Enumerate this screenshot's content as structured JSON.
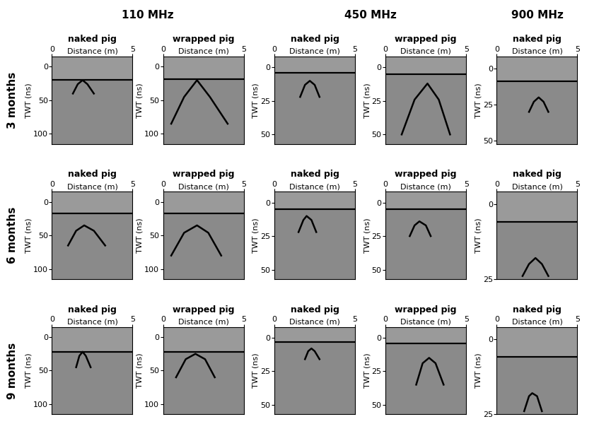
{
  "chart_data": [
    {
      "type": "radargram",
      "group": "110 MHz",
      "row": "3 months",
      "title": "naked pig",
      "x_label": "Distance (m)",
      "y_label": "TWT (ns)",
      "xlim": [
        0,
        5
      ],
      "ylim": [
        -15,
        115
      ],
      "xticks": [
        0,
        5
      ],
      "yticks": [
        0,
        50,
        100
      ],
      "surface": 20,
      "reflections": [
        {
          "x": [
            1.3,
            1.6,
            1.9,
            2.2,
            2.6
          ],
          "y": [
            40,
            26,
            20,
            26,
            40
          ]
        }
      ]
    },
    {
      "type": "radargram",
      "group": "110 MHz",
      "row": "3 months",
      "title": "wrapped pig",
      "x_label": "Distance (m)",
      "y_label": "TWT (ns)",
      "xlim": [
        0,
        5
      ],
      "ylim": [
        -15,
        115
      ],
      "xticks": [
        0,
        5
      ],
      "yticks": [
        0,
        50,
        100
      ],
      "surface": 18,
      "reflections": [
        {
          "x": [
            0.5,
            1.3,
            2.1,
            2.9,
            4.0
          ],
          "y": [
            85,
            45,
            20,
            45,
            85
          ]
        }
      ]
    },
    {
      "type": "radargram",
      "group": "450 MHz",
      "row": "3 months",
      "title": "naked pig",
      "x_label": "Distance (m)",
      "y_label": "TWT (ns)",
      "xlim": [
        0,
        5
      ],
      "ylim": [
        -8,
        57
      ],
      "xticks": [
        0,
        5
      ],
      "yticks": [
        0,
        25,
        50
      ],
      "surface": 4,
      "reflections": [
        {
          "x": [
            1.6,
            1.9,
            2.2,
            2.5,
            2.8
          ],
          "y": [
            22,
            13,
            10,
            13,
            22
          ]
        }
      ]
    },
    {
      "type": "radargram",
      "group": "450 MHz",
      "row": "3 months",
      "title": "wrapped pig",
      "x_label": "Distance (m)",
      "y_label": "TWT (ns)",
      "xlim": [
        0,
        5
      ],
      "ylim": [
        -8,
        57
      ],
      "xticks": [
        0,
        5
      ],
      "yticks": [
        0,
        25,
        50
      ],
      "surface": 5,
      "reflections": [
        {
          "x": [
            1.0,
            1.8,
            2.6,
            3.3,
            4.0
          ],
          "y": [
            50,
            24,
            12,
            24,
            50
          ]
        }
      ]
    },
    {
      "type": "radargram",
      "group": "900 MHz",
      "row": "3 months",
      "title": "naked pig",
      "x_label": "Distance (m)",
      "y_label": "TWT (ns)",
      "xlim": [
        0,
        5
      ],
      "ylim": [
        -8,
        52
      ],
      "xticks": [
        0,
        5
      ],
      "yticks": [
        0,
        25,
        50
      ],
      "surface": 9,
      "reflections": [
        {
          "x": [
            2.0,
            2.3,
            2.6,
            2.9,
            3.2
          ],
          "y": [
            30,
            23,
            20,
            23,
            30
          ]
        }
      ]
    },
    {
      "type": "radargram",
      "group": "110 MHz",
      "row": "6 months",
      "title": "naked pig",
      "x_label": "Distance (m)",
      "y_label": "TWT (ns)",
      "xlim": [
        0,
        5
      ],
      "ylim": [
        -15,
        115
      ],
      "xticks": [
        0,
        5
      ],
      "yticks": [
        0,
        50,
        100
      ],
      "surface": 17,
      "reflections": [
        {
          "x": [
            1.0,
            1.5,
            2.0,
            2.6,
            3.3
          ],
          "y": [
            65,
            43,
            35,
            43,
            65
          ]
        }
      ]
    },
    {
      "type": "radargram",
      "group": "110 MHz",
      "row": "6 months",
      "title": "wrapped pig",
      "x_label": "Distance (m)",
      "y_label": "TWT (ns)",
      "xlim": [
        0,
        5
      ],
      "ylim": [
        -15,
        115
      ],
      "xticks": [
        0,
        5
      ],
      "yticks": [
        0,
        50,
        100
      ],
      "surface": 17,
      "reflections": [
        {
          "x": [
            0.5,
            1.3,
            2.1,
            2.8,
            3.6
          ],
          "y": [
            80,
            46,
            35,
            46,
            80
          ]
        }
      ]
    },
    {
      "type": "radargram",
      "group": "450 MHz",
      "row": "6 months",
      "title": "naked pig",
      "x_label": "Distance (m)",
      "y_label": "TWT (ns)",
      "xlim": [
        0,
        5
      ],
      "ylim": [
        -8,
        57
      ],
      "xticks": [
        0,
        5
      ],
      "yticks": [
        0,
        25,
        50
      ],
      "surface": 5,
      "reflections": [
        {
          "x": [
            1.5,
            1.8,
            2.0,
            2.3,
            2.6
          ],
          "y": [
            22,
            13,
            10,
            13,
            22
          ]
        }
      ]
    },
    {
      "type": "radargram",
      "group": "450 MHz",
      "row": "6 months",
      "title": "wrapped pig",
      "x_label": "Distance (m)",
      "y_label": "TWT (ns)",
      "xlim": [
        0,
        5
      ],
      "ylim": [
        -8,
        57
      ],
      "xticks": [
        0,
        5
      ],
      "yticks": [
        0,
        25,
        50
      ],
      "surface": 5,
      "reflections": [
        {
          "x": [
            1.5,
            1.8,
            2.1,
            2.5,
            2.8
          ],
          "y": [
            25,
            17,
            14,
            17,
            25
          ]
        }
      ]
    },
    {
      "type": "radargram",
      "group": "900 MHz",
      "row": "6 months",
      "title": "naked pig",
      "x_label": "Distance (m)",
      "y_label": "TWT (ns)",
      "xlim": [
        0,
        5
      ],
      "ylim": [
        -4,
        25
      ],
      "xticks": [
        0,
        5
      ],
      "yticks": [
        0,
        25
      ],
      "surface": 6,
      "reflections": [
        {
          "x": [
            1.6,
            2.0,
            2.4,
            2.8,
            3.2
          ],
          "y": [
            24,
            20,
            18,
            20,
            24
          ]
        }
      ]
    },
    {
      "type": "radargram",
      "group": "110 MHz",
      "row": "9 months",
      "title": "naked pig",
      "x_label": "Distance (m)",
      "y_label": "TWT (ns)",
      "xlim": [
        0,
        5
      ],
      "ylim": [
        -15,
        115
      ],
      "xticks": [
        0,
        5
      ],
      "yticks": [
        0,
        50,
        100
      ],
      "surface": 22,
      "reflections": [
        {
          "x": [
            1.5,
            1.7,
            1.9,
            2.1,
            2.4
          ],
          "y": [
            45,
            28,
            22,
            28,
            45
          ]
        }
      ]
    },
    {
      "type": "radargram",
      "group": "110 MHz",
      "row": "9 months",
      "title": "wrapped pig",
      "x_label": "Distance (m)",
      "y_label": "TWT (ns)",
      "xlim": [
        0,
        5
      ],
      "ylim": [
        -15,
        115
      ],
      "xticks": [
        0,
        5
      ],
      "yticks": [
        0,
        50,
        100
      ],
      "surface": 22,
      "reflections": [
        {
          "x": [
            0.8,
            1.4,
            2.0,
            2.6,
            3.2
          ],
          "y": [
            60,
            33,
            25,
            33,
            60
          ]
        }
      ]
    },
    {
      "type": "radargram",
      "group": "450 MHz",
      "row": "9 months",
      "title": "naked pig",
      "x_label": "Distance (m)",
      "y_label": "TWT (ns)",
      "xlim": [
        0,
        5
      ],
      "ylim": [
        -8,
        57
      ],
      "xticks": [
        0,
        5
      ],
      "yticks": [
        0,
        25,
        50
      ],
      "surface": 3,
      "reflections": [
        {
          "x": [
            1.9,
            2.1,
            2.3,
            2.5,
            2.8
          ],
          "y": [
            16,
            10,
            8,
            10,
            16
          ]
        }
      ]
    },
    {
      "type": "radargram",
      "group": "450 MHz",
      "row": "9 months",
      "title": "wrapped pig",
      "x_label": "Distance (m)",
      "y_label": "TWT (ns)",
      "xlim": [
        0,
        5
      ],
      "ylim": [
        -8,
        57
      ],
      "xticks": [
        0,
        5
      ],
      "yticks": [
        0,
        25,
        50
      ],
      "surface": 4,
      "reflections": [
        {
          "x": [
            1.9,
            2.3,
            2.7,
            3.1,
            3.6
          ],
          "y": [
            35,
            19,
            15,
            19,
            35
          ]
        }
      ]
    },
    {
      "type": "radargram",
      "group": "900 MHz",
      "row": "9 months",
      "title": "naked pig",
      "x_label": "Distance (m)",
      "y_label": "TWT (ns)",
      "xlim": [
        0,
        5
      ],
      "ylim": [
        -4,
        25
      ],
      "xticks": [
        0,
        5
      ],
      "yticks": [
        0,
        25
      ],
      "surface": 6,
      "reflections": [
        {
          "x": [
            1.7,
            2.0,
            2.2,
            2.5,
            2.8
          ],
          "y": [
            24,
            19,
            18,
            19,
            24
          ]
        }
      ]
    }
  ]
}
